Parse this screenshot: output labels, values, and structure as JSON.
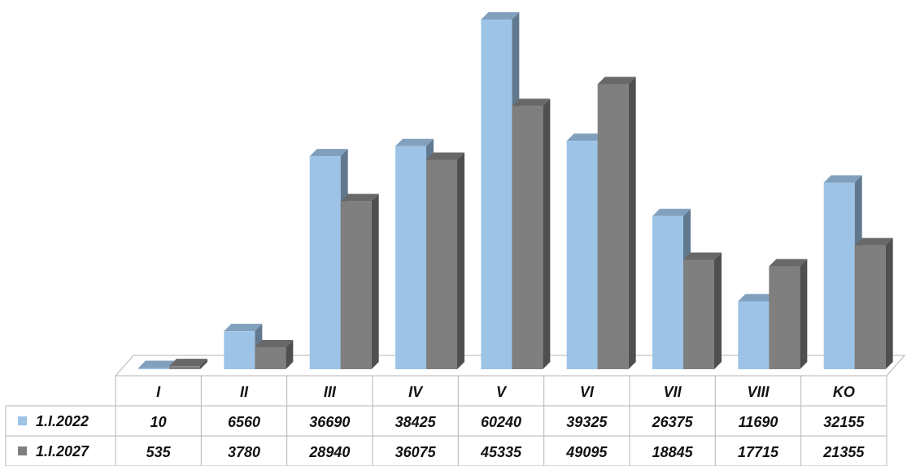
{
  "chart_data": {
    "type": "bar",
    "title": "",
    "xlabel": "",
    "ylabel": "",
    "ylim": [
      0,
      60240
    ],
    "grid": false,
    "legend": "table-left",
    "categories": [
      "I",
      "II",
      "III",
      "IV",
      "V",
      "VI",
      "VII",
      "VIII",
      "KO"
    ],
    "series": [
      {
        "name": "1.I.2022",
        "color": "#9DC3E6",
        "values": [
          10,
          6560,
          36690,
          38425,
          60240,
          39325,
          26375,
          11690,
          32155
        ]
      },
      {
        "name": "1.I.2027",
        "color": "#7F7F7F",
        "values": [
          535,
          3780,
          28940,
          36075,
          45335,
          49095,
          18845,
          17715,
          21355
        ]
      }
    ]
  }
}
